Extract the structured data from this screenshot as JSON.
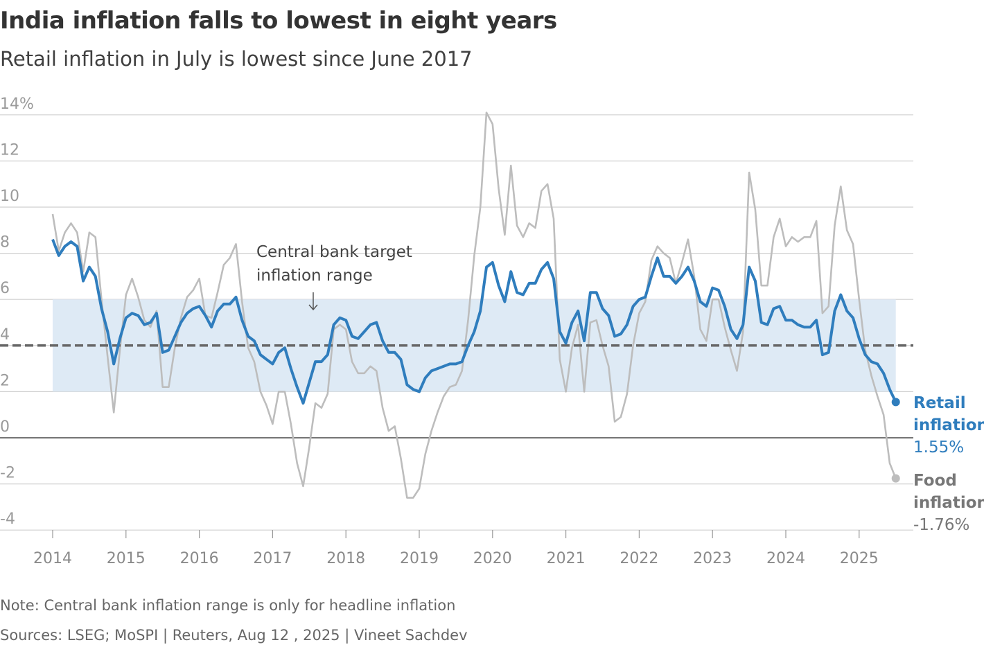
{
  "title": "India inflation falls to lowest in eight years",
  "subtitle": "Retail inflation in July is lowest since June 2017",
  "note": "Note: Central bank inflation range is only for headline inflation",
  "sources": "Sources: LSEG; MoSPI | Reuters, Aug 12 , 2025 | Vineet Sachdev",
  "chart_data": {
    "type": "line",
    "x_start": "2014-01",
    "x_end": "2025-07",
    "frequency": "monthly",
    "ylim": [
      -4,
      14
    ],
    "grid": true,
    "y_ticks": [
      {
        "v": 14,
        "label": "14%"
      },
      {
        "v": 12,
        "label": "12"
      },
      {
        "v": 10,
        "label": "10"
      },
      {
        "v": 8,
        "label": "8"
      },
      {
        "v": 6,
        "label": "6"
      },
      {
        "v": 4,
        "label": "4"
      },
      {
        "v": 2,
        "label": "2"
      },
      {
        "v": 0,
        "label": "0"
      },
      {
        "v": -2,
        "label": "-2"
      },
      {
        "v": -4,
        "label": "-4"
      }
    ],
    "x_ticks": [
      "2014",
      "2015",
      "2016",
      "2017",
      "2018",
      "2019",
      "2020",
      "2021",
      "2022",
      "2023",
      "2024",
      "2025"
    ],
    "target_band": {
      "low": 2,
      "high": 6,
      "target": 4,
      "label_line1": "Central bank target",
      "label_line2": "inflation range",
      "color": "#deeaf5"
    },
    "series": [
      {
        "name": "Retail inflation",
        "label_line1": "Retail",
        "label_line2": "inflation",
        "last_label": "1.55%",
        "color": "#2f7dbd",
        "values": [
          8.6,
          7.9,
          8.3,
          8.5,
          8.3,
          6.8,
          7.4,
          7.0,
          5.6,
          4.6,
          3.2,
          4.3,
          5.2,
          5.4,
          5.3,
          4.9,
          5.0,
          5.4,
          3.7,
          3.8,
          4.4,
          5.0,
          5.4,
          5.6,
          5.7,
          5.3,
          4.8,
          5.5,
          5.8,
          5.8,
          6.1,
          5.1,
          4.4,
          4.2,
          3.6,
          3.4,
          3.2,
          3.7,
          3.9,
          3.0,
          2.2,
          1.5,
          2.4,
          3.3,
          3.3,
          3.6,
          4.9,
          5.2,
          5.1,
          4.4,
          4.3,
          4.6,
          4.9,
          5.0,
          4.2,
          3.7,
          3.7,
          3.4,
          2.3,
          2.1,
          2.0,
          2.6,
          2.9,
          3.0,
          3.1,
          3.2,
          3.2,
          3.3,
          4.0,
          4.6,
          5.5,
          7.4,
          7.6,
          6.6,
          5.9,
          7.2,
          6.3,
          6.2,
          6.7,
          6.7,
          7.3,
          7.6,
          6.9,
          4.6,
          4.1,
          5.0,
          5.5,
          4.2,
          6.3,
          6.3,
          5.6,
          5.3,
          4.4,
          4.5,
          4.9,
          5.7,
          6.0,
          6.1,
          7.0,
          7.8,
          7.0,
          7.0,
          6.7,
          7.0,
          7.4,
          6.8,
          5.9,
          5.7,
          6.5,
          6.4,
          5.7,
          4.7,
          4.3,
          4.9,
          7.4,
          6.8,
          5.0,
          4.9,
          5.6,
          5.7,
          5.1,
          5.1,
          4.9,
          4.8,
          4.8,
          5.1,
          3.6,
          3.7,
          5.5,
          6.2,
          5.5,
          5.2,
          4.3,
          3.6,
          3.3,
          3.2,
          2.8,
          2.1,
          1.55
        ]
      },
      {
        "name": "Food inflation",
        "label_line1": "Food",
        "label_line2": "inflation",
        "last_label": "-1.76%",
        "color": "#bdbdbd",
        "label_color": "#777777",
        "values": [
          9.7,
          8.1,
          8.9,
          9.3,
          8.9,
          7.2,
          8.9,
          8.7,
          6.0,
          3.5,
          1.1,
          3.8,
          6.2,
          6.9,
          6.1,
          5.1,
          4.8,
          5.5,
          2.2,
          2.2,
          3.9,
          5.2,
          6.1,
          6.4,
          6.9,
          5.3,
          5.2,
          6.3,
          7.5,
          7.8,
          8.4,
          5.9,
          3.9,
          3.3,
          2.0,
          1.4,
          0.6,
          2.0,
          2.0,
          0.6,
          -1.1,
          -2.1,
          -0.4,
          1.5,
          1.3,
          1.9,
          4.7,
          4.9,
          4.7,
          3.3,
          2.8,
          2.8,
          3.1,
          2.9,
          1.3,
          0.3,
          0.5,
          -0.9,
          -2.6,
          -2.6,
          -2.2,
          -0.7,
          0.3,
          1.1,
          1.8,
          2.2,
          2.3,
          2.9,
          5.1,
          7.9,
          10.0,
          14.1,
          13.6,
          10.8,
          8.8,
          11.8,
          9.2,
          8.7,
          9.3,
          9.1,
          10.7,
          11.0,
          9.5,
          3.4,
          2.0,
          3.9,
          4.9,
          2.0,
          5.0,
          5.1,
          4.0,
          3.1,
          0.7,
          0.9,
          1.9,
          4.0,
          5.4,
          5.9,
          7.7,
          8.3,
          8.0,
          7.8,
          6.7,
          7.6,
          8.6,
          7.0,
          4.7,
          4.2,
          6.0,
          6.0,
          4.8,
          3.8,
          2.9,
          4.6,
          11.5,
          9.9,
          6.6,
          6.6,
          8.7,
          9.5,
          8.3,
          8.7,
          8.5,
          8.7,
          8.7,
          9.4,
          5.4,
          5.7,
          9.2,
          10.9,
          9.0,
          8.4,
          6.0,
          3.8,
          2.7,
          1.8,
          1.0,
          -1.1,
          -1.76
        ]
      }
    ]
  }
}
